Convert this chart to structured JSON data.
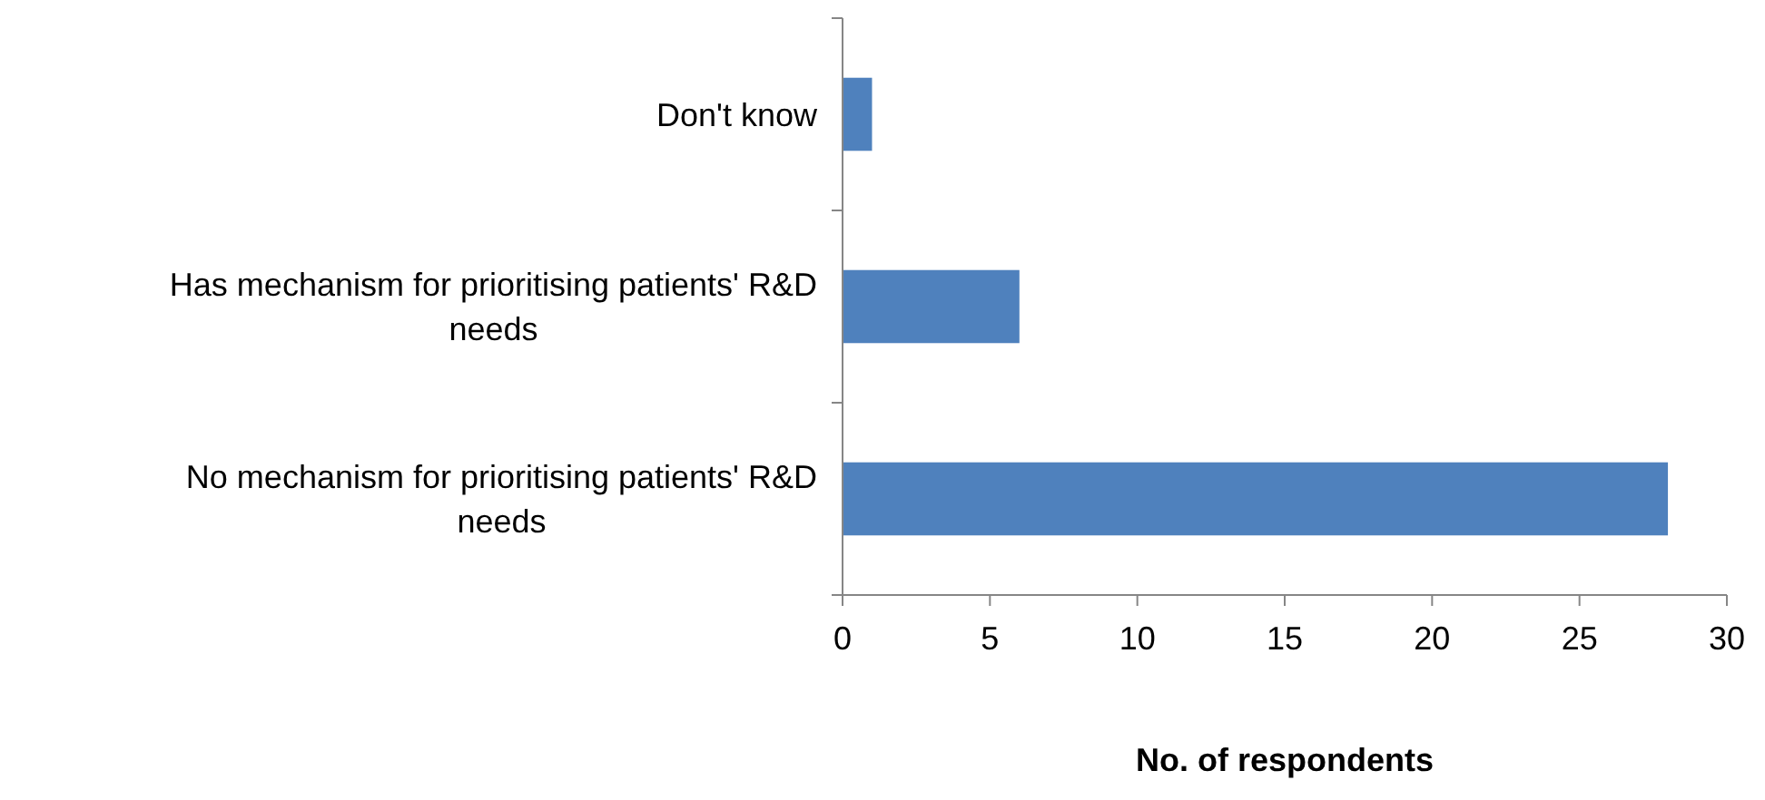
{
  "chart_data": {
    "type": "bar",
    "orientation": "horizontal",
    "categories": [
      "Don't know",
      "Has mechanism for prioritising patients' R&D needs",
      "No mechanism for prioritising patients' R&D needs"
    ],
    "values": [
      1,
      6,
      28
    ],
    "color": "#4f81bd",
    "xlim": [
      0,
      30
    ],
    "xticks": [
      0,
      5,
      10,
      15,
      20,
      25,
      30
    ],
    "xlabel": "No. of respondents"
  }
}
